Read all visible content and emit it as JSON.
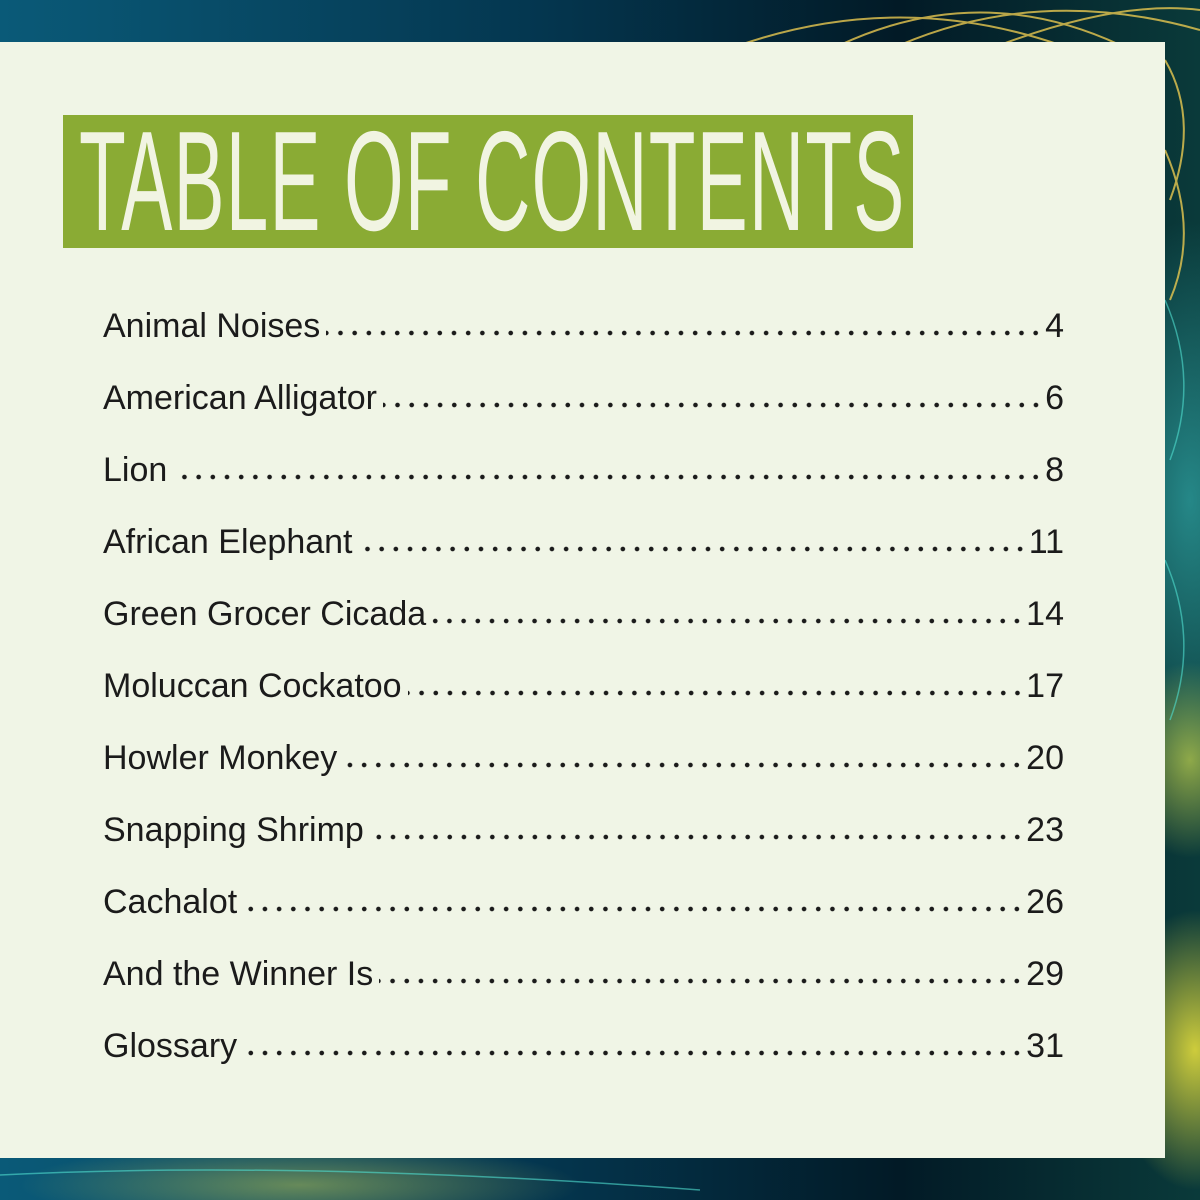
{
  "title": "TABLE OF CONTENTS",
  "colors": {
    "title_bg": "#8aab34",
    "panel_bg": "#f0f5e6",
    "text": "#1b1b1b"
  },
  "entries": [
    {
      "label": "Animal Noises",
      "page": "4"
    },
    {
      "label": "American Alligator",
      "page": "6"
    },
    {
      "label": "Lion",
      "page": "8"
    },
    {
      "label": "African Elephant",
      "page": "11"
    },
    {
      "label": "Green Grocer Cicada",
      "page": "14"
    },
    {
      "label": "Moluccan Cockatoo",
      "page": "17"
    },
    {
      "label": "Howler Monkey",
      "page": "20"
    },
    {
      "label": "Snapping Shrimp",
      "page": "23"
    },
    {
      "label": "Cachalot",
      "page": "26"
    },
    {
      "label": "And the Winner Is",
      "page": "29"
    },
    {
      "label": "Glossary",
      "page": "31"
    }
  ]
}
